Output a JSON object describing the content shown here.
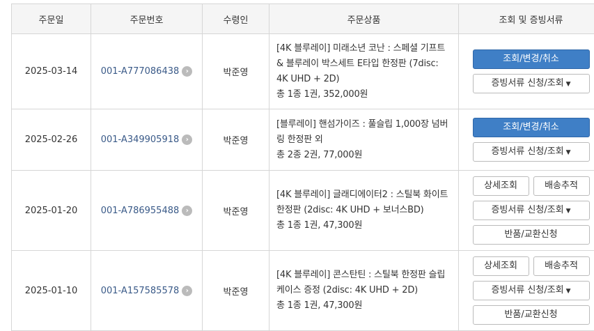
{
  "headers": [
    "주문일",
    "주문번호",
    "수령인",
    "주문상품",
    "조회 및 증빙서류"
  ],
  "buttons": {
    "view_change_cancel": "조회/변경/취소",
    "receipt": "증빙서류 신청/조회",
    "detail": "상세조회",
    "tracking": "배송추적",
    "return": "반품/교환신청"
  },
  "colors": {
    "primary": "#3f7fc6",
    "link": "#3a5a88"
  },
  "orders": [
    {
      "date": "2025-03-14",
      "order_no": "001-A777086438",
      "recipient": "박준영",
      "product": "[4K 블루레이] 미래소년 코난 : 스페셜 기프트 & 블루레이 박스세트 E타입 한정판 (7disc: 4K UHD + 2D)",
      "summary": "총 1종 1권, 352,000원"
    },
    {
      "date": "2025-02-26",
      "order_no": "001-A349905918",
      "recipient": "박준영",
      "product": "[블루레이] 핸섬가이즈 : 풀슬립 1,000장 넘버링 한정판 외",
      "summary": "총 2종 2권, 77,000원"
    },
    {
      "date": "2025-01-20",
      "order_no": "001-A786955488",
      "recipient": "박준영",
      "product": "[4K 블루레이] 글래디에이터2 : 스틸북 화이트 한정판 (2disc: 4K UHD + 보너스BD)",
      "summary": "총 1종 1권, 47,300원"
    },
    {
      "date": "2025-01-10",
      "order_no": "001-A157585578",
      "recipient": "박준영",
      "product": "[4K 블루레이] 콘스탄틴 : 스틸북 한정판 슬립케이스 증정 (2disc: 4K UHD + 2D)",
      "summary": "총 1종 1권, 47,300원"
    }
  ]
}
